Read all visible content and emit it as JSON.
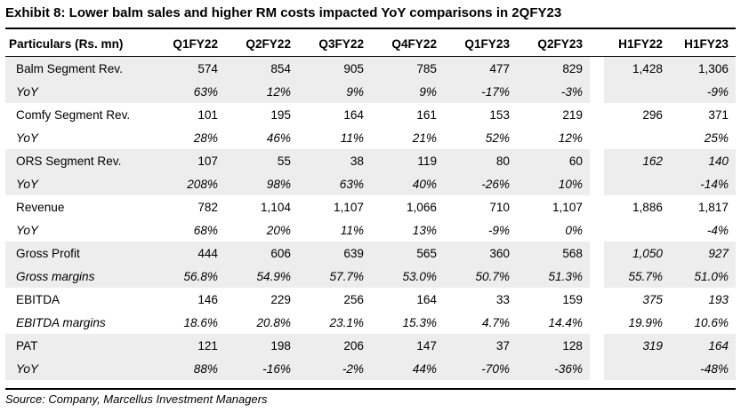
{
  "title": "Exhibit 8: Lower balm sales and higher RM costs impacted YoY comparisons in 2QFY23",
  "source": "Source: Company, Marcellus Investment Managers",
  "header": {
    "particulars": "Particulars (Rs. mn)",
    "quarters": [
      "Q1FY22",
      "Q2FY22",
      "Q3FY22",
      "Q4FY22",
      "Q1FY23",
      "Q2FY23"
    ],
    "halves": [
      "H1FY22",
      "H1FY23"
    ]
  },
  "rows": [
    {
      "label": "Balm Segment Rev.",
      "shade": true,
      "italic": false,
      "q": [
        "574",
        "854",
        "905",
        "785",
        "477",
        "829"
      ],
      "h": [
        "1,428",
        "1,306"
      ]
    },
    {
      "label": "YoY",
      "shade": true,
      "italic": true,
      "q": [
        "63%",
        "12%",
        "9%",
        "9%",
        "-17%",
        "-3%"
      ],
      "h": [
        "",
        "-9%"
      ]
    },
    {
      "label": "Comfy Segment Rev.",
      "shade": false,
      "italic": false,
      "q": [
        "101",
        "195",
        "164",
        "161",
        "153",
        "219"
      ],
      "h": [
        "296",
        "371"
      ]
    },
    {
      "label": "YoY",
      "shade": false,
      "italic": true,
      "q": [
        "28%",
        "46%",
        "11%",
        "21%",
        "52%",
        "12%"
      ],
      "h": [
        "",
        "25%"
      ]
    },
    {
      "label": "ORS Segment Rev.",
      "shade": true,
      "italic": false,
      "q": [
        "107",
        "55",
        "38",
        "119",
        "80",
        "60"
      ],
      "h": [
        "162",
        "140"
      ],
      "h_italic": true
    },
    {
      "label": "YoY",
      "shade": true,
      "italic": true,
      "q": [
        "208%",
        "98%",
        "63%",
        "40%",
        "-26%",
        "10%"
      ],
      "h": [
        "",
        "-14%"
      ]
    },
    {
      "label": "Revenue",
      "shade": false,
      "italic": false,
      "q": [
        "782",
        "1,104",
        "1,107",
        "1,066",
        "710",
        "1,107"
      ],
      "h": [
        "1,886",
        "1,817"
      ]
    },
    {
      "label": "YoY",
      "shade": false,
      "italic": true,
      "q": [
        "68%",
        "20%",
        "11%",
        "13%",
        "-9%",
        "0%"
      ],
      "h": [
        "",
        "-4%"
      ]
    },
    {
      "label": "Gross Profit",
      "shade": true,
      "italic": false,
      "q": [
        "444",
        "606",
        "639",
        "565",
        "360",
        "568"
      ],
      "h": [
        "1,050",
        "927"
      ],
      "h_italic": true
    },
    {
      "label": "Gross margins",
      "shade": true,
      "italic": true,
      "q": [
        "56.8%",
        "54.9%",
        "57.7%",
        "53.0%",
        "50.7%",
        "51.3%"
      ],
      "h": [
        "55.7%",
        "51.0%"
      ]
    },
    {
      "label": "EBITDA",
      "shade": false,
      "italic": false,
      "q": [
        "146",
        "229",
        "256",
        "164",
        "33",
        "159"
      ],
      "h": [
        "375",
        "193"
      ],
      "h_italic": true
    },
    {
      "label": "EBITDA margins",
      "shade": false,
      "italic": true,
      "q": [
        "18.6%",
        "20.8%",
        "23.1%",
        "15.3%",
        "4.7%",
        "14.4%"
      ],
      "h": [
        "19.9%",
        "10.6%"
      ]
    },
    {
      "label": "PAT",
      "shade": true,
      "italic": false,
      "q": [
        "121",
        "198",
        "206",
        "147",
        "37",
        "128"
      ],
      "h": [
        "319",
        "164"
      ],
      "h_italic": true
    },
    {
      "label": "YoY",
      "shade": true,
      "italic": true,
      "q": [
        "88%",
        "-16%",
        "-2%",
        "44%",
        "-70%",
        "-36%"
      ],
      "h": [
        "",
        "-48%"
      ]
    }
  ]
}
